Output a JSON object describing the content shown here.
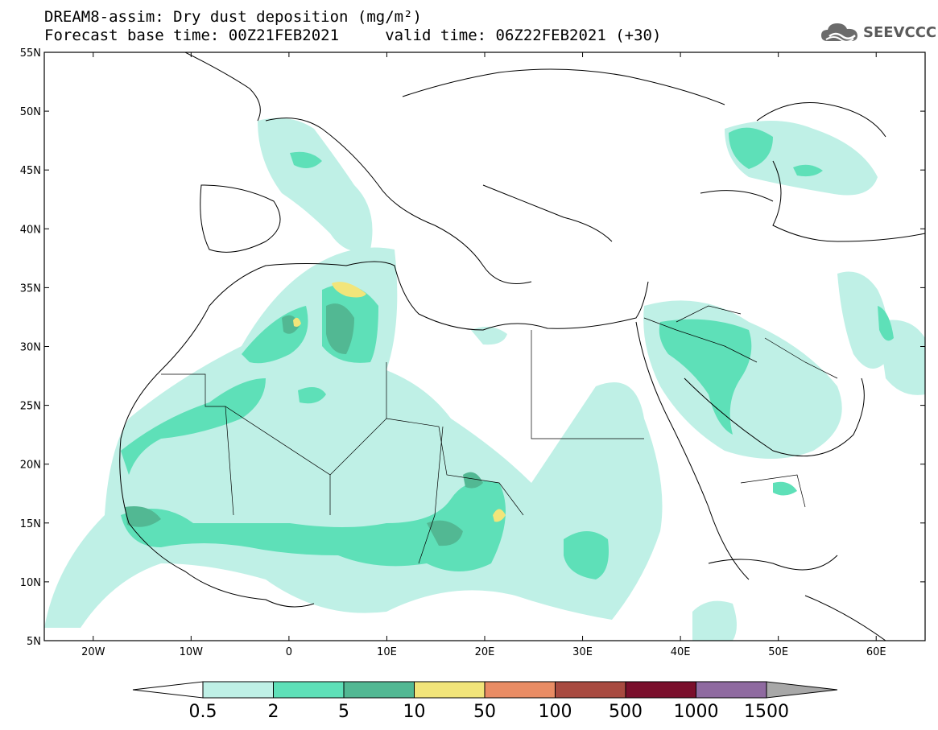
{
  "title_line1": "DREAM8-assim: Dry dust deposition (mg/m²)",
  "title_line2": "Forecast base time: 00Z21FEB2021     valid time: 06Z22FEB2021 (+30)",
  "logo": {
    "text": "SEEVCCC",
    "icon": "cloud-icon"
  },
  "map": {
    "lon_range": [
      -25,
      65
    ],
    "lat_range": [
      5,
      55
    ],
    "lat_labels": [
      "55N",
      "50N",
      "45N",
      "40N",
      "35N",
      "30N",
      "25N",
      "20N",
      "15N",
      "10N",
      "5N"
    ],
    "lon_labels": [
      "20W",
      "10W",
      "0",
      "10E",
      "20E",
      "30E",
      "40E",
      "50E",
      "60E"
    ]
  },
  "colorbar": {
    "labels": [
      "0.5",
      "2",
      "5",
      "10",
      "50",
      "100",
      "500",
      "1000",
      "1500"
    ],
    "colors": [
      "#bff0e6",
      "#5ee0b8",
      "#52b893",
      "#f2e57a",
      "#e98c64",
      "#a84a40",
      "#7a0f2c",
      "#8f6aa0",
      "#a8a8a8"
    ],
    "under_color": "#ffffff",
    "over_color": "#a8a8a8"
  }
}
